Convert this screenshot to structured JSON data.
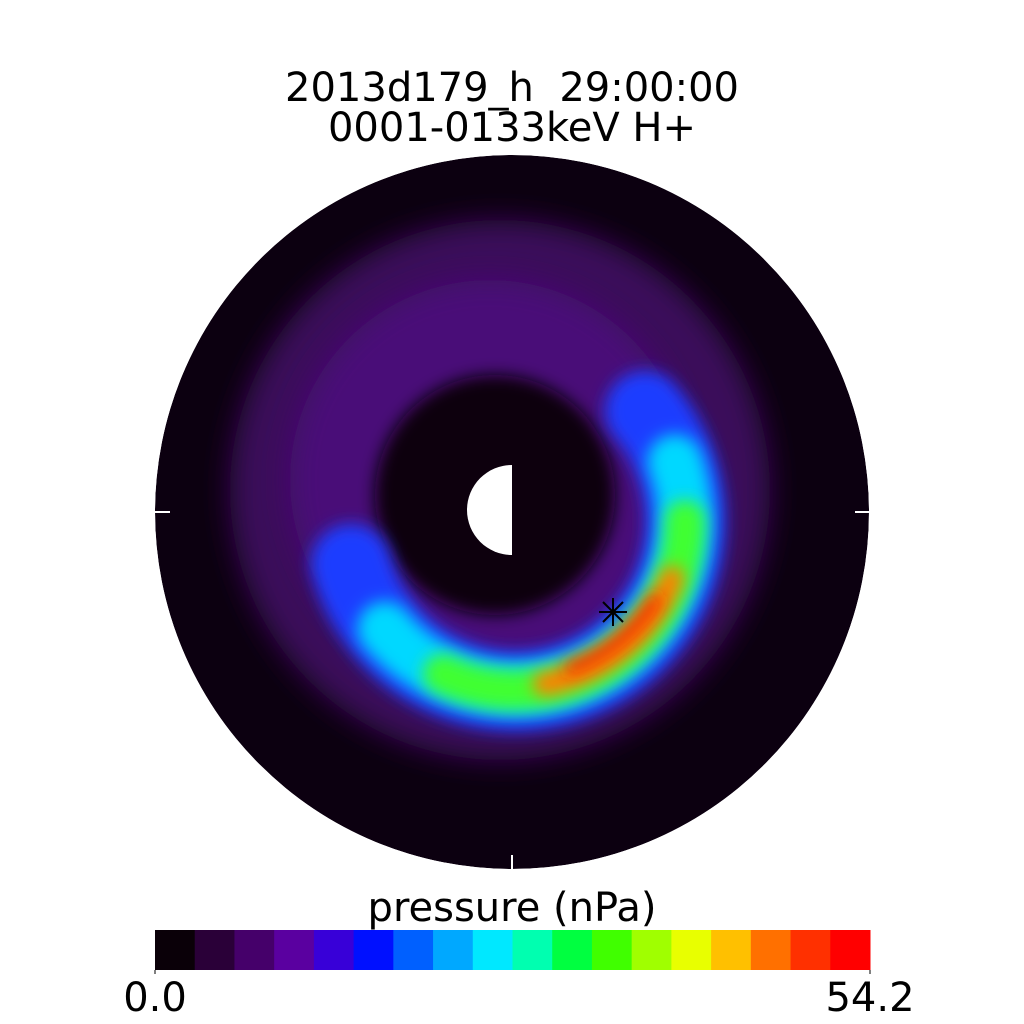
{
  "chart_data": {
    "type": "contour",
    "title": [
      "2013d179_h  29:00:00",
      "0001-0133keV H+"
    ],
    "colorbar_label": "pressure (nPa)",
    "clim": [
      0,
      54.2
    ],
    "cticks": [
      {
        "value": 0,
        "label": "0.0"
      },
      54.2
    ],
    "colors": [
      "#0a0008",
      "#2a0038",
      "#45006a",
      "#5a00a0",
      "#3800d8",
      "#0010ff",
      "#0060ff",
      "#00a8ff",
      "#00e8ff",
      "#00ffb0",
      "#00ff40",
      "#40ff00",
      "#a0ff00",
      "#e8ff00",
      "#ffc000",
      "#ff7000",
      "#ff3000",
      "#ff0000"
    ]
  }
}
